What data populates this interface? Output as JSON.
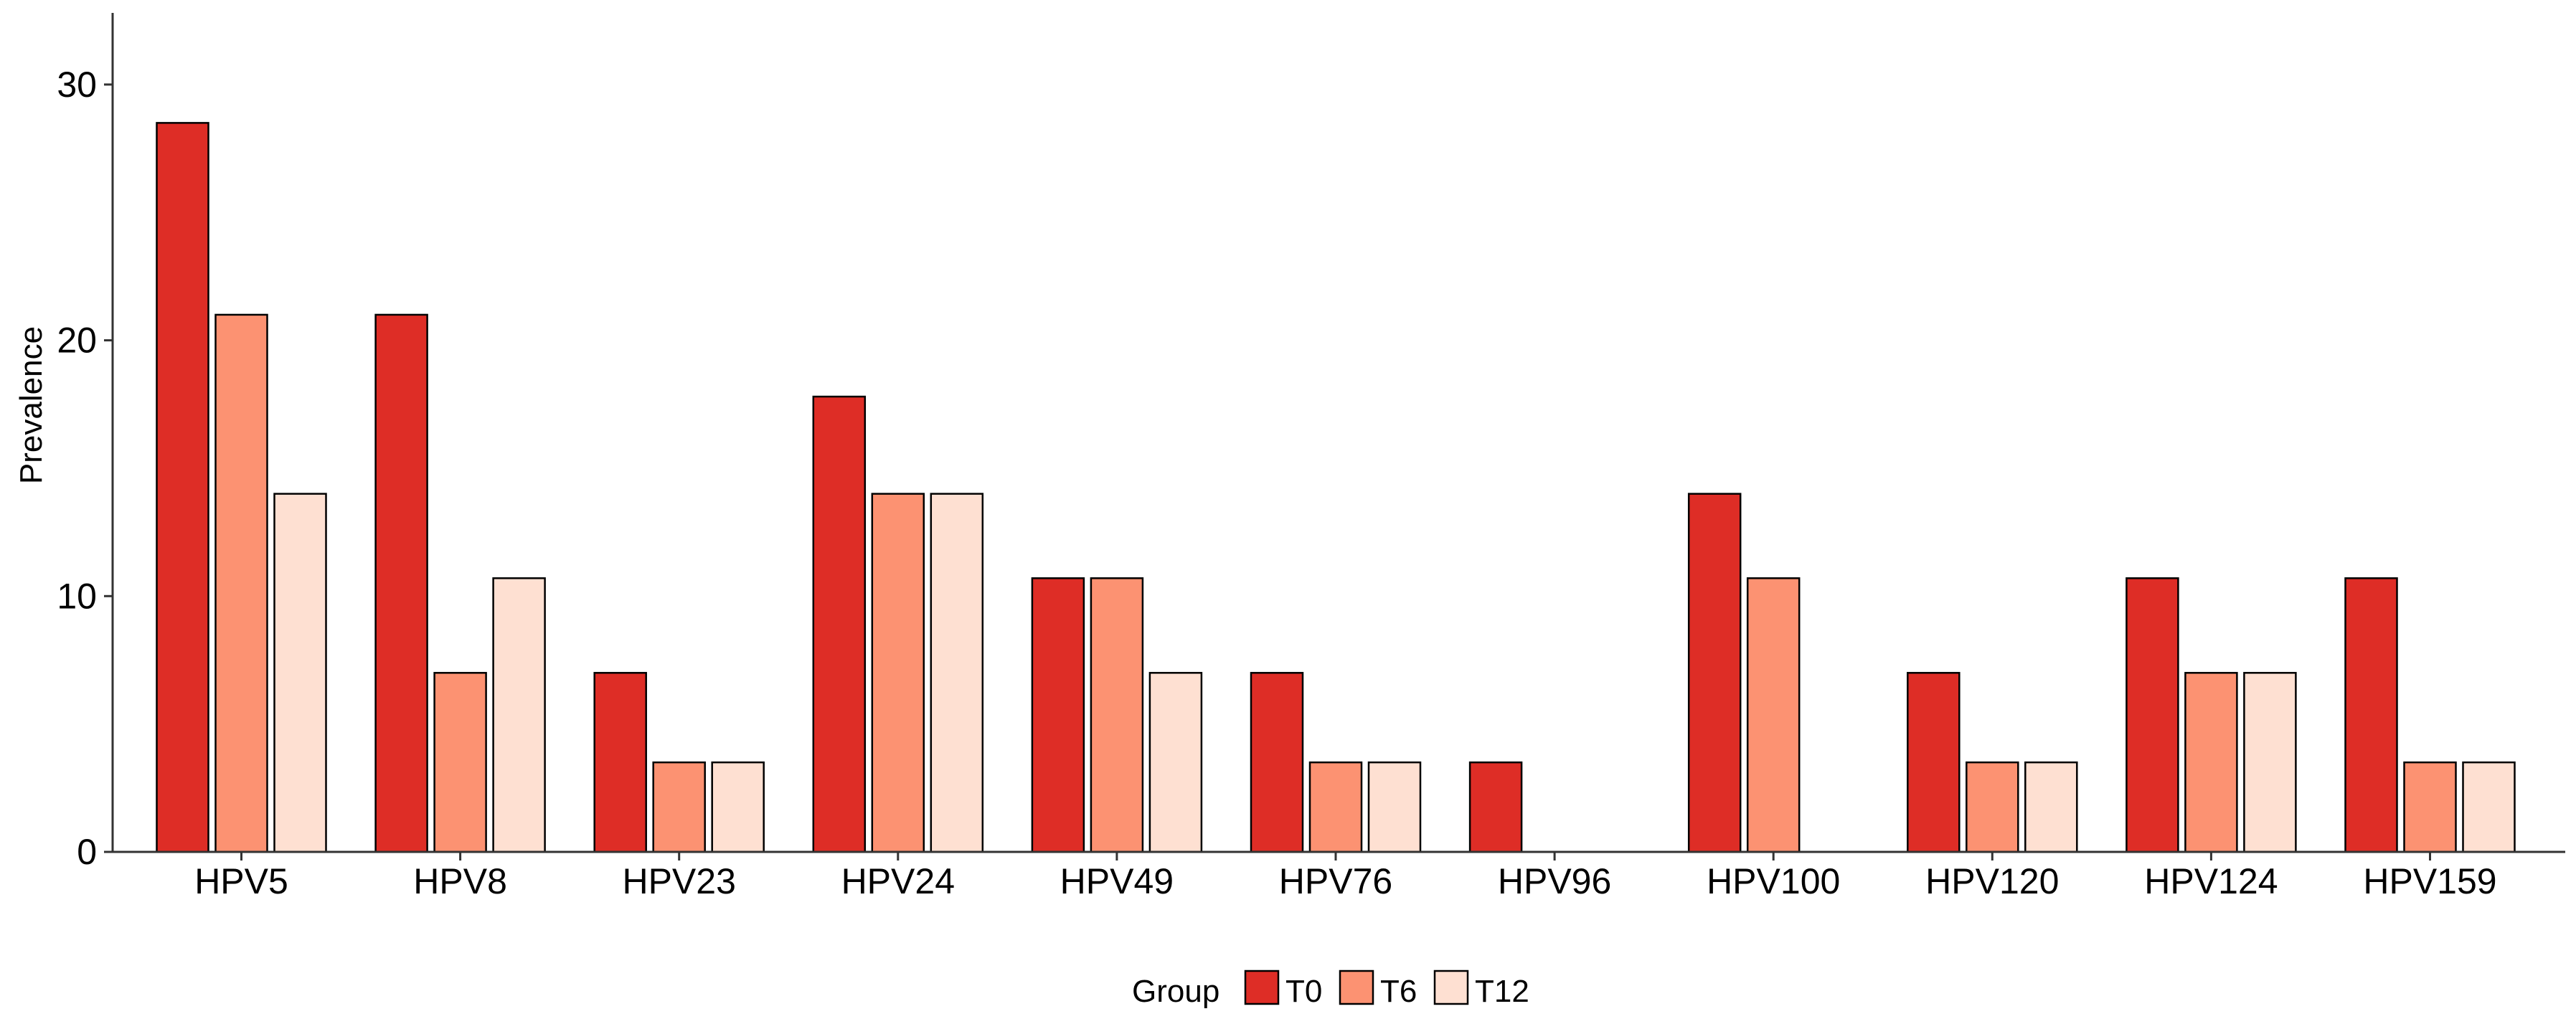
{
  "chart_data": {
    "type": "bar",
    "categories": [
      "HPV5",
      "HPV8",
      "HPV23",
      "HPV24",
      "HPV49",
      "HPV76",
      "HPV96",
      "HPV100",
      "HPV120",
      "HPV124",
      "HPV159"
    ],
    "series": [
      {
        "name": "T0",
        "color": "#de2d26",
        "values": [
          28.5,
          21.0,
          7.0,
          17.8,
          10.7,
          7.0,
          3.5,
          14.0,
          7.0,
          10.7,
          10.7
        ]
      },
      {
        "name": "T6",
        "color": "#fc9272",
        "values": [
          21.0,
          7.0,
          3.5,
          14.0,
          10.7,
          3.5,
          0,
          10.7,
          3.5,
          7.0,
          3.5
        ]
      },
      {
        "name": "T12",
        "color": "#fee0d2",
        "values": [
          14.0,
          10.7,
          3.5,
          14.0,
          7.0,
          3.5,
          0,
          0,
          3.5,
          7.0,
          3.5
        ]
      }
    ],
    "xlabel": "",
    "ylabel": "Prevalence",
    "ylim": [
      0,
      32.8
    ],
    "yticks": [
      0,
      10,
      20,
      30
    ],
    "grid": false,
    "legend": {
      "title": "Group",
      "position": "bottom"
    }
  }
}
